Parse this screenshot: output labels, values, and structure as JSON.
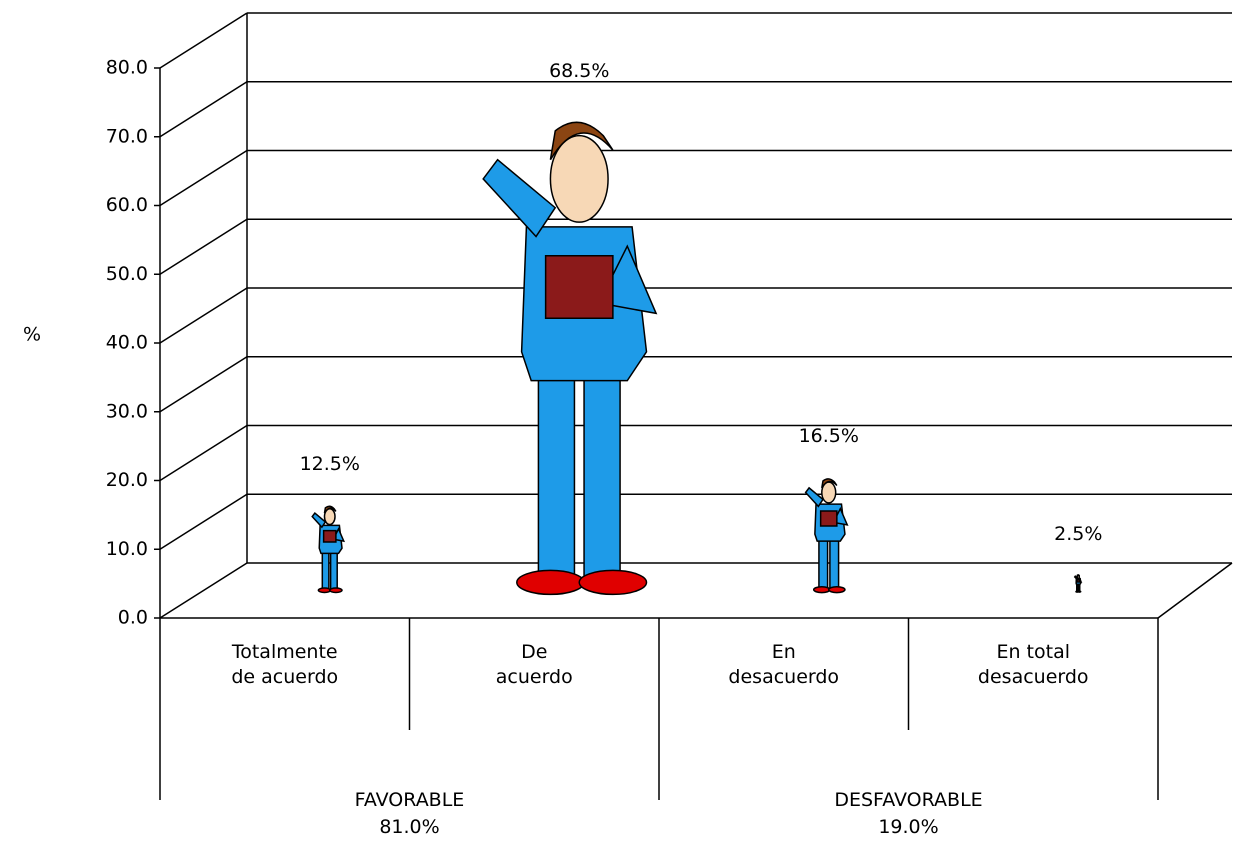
{
  "chart_data": {
    "type": "pictograph",
    "ylabel": "%",
    "categories": [
      "Totalmente\nde acuerdo",
      "De\nacuerdo",
      "En\ndesacuerdo",
      "En total\ndesacuerdo"
    ],
    "values": [
      12.5,
      68.5,
      16.5,
      2.5
    ],
    "value_labels": [
      "12.5%",
      "68.5%",
      "16.5%",
      "2.5%"
    ],
    "groups": [
      {
        "name": "FAVORABLE",
        "share": "81.0%"
      },
      {
        "name": "DESFAVORABLE",
        "share": "19.0%"
      }
    ],
    "ylim": [
      0,
      80
    ],
    "yticks": [
      {
        "value": 0,
        "label": "0.0"
      },
      {
        "value": 10,
        "label": "10.0"
      },
      {
        "value": 20,
        "label": "20.0"
      },
      {
        "value": 30,
        "label": "30.0"
      },
      {
        "value": 40,
        "label": "40.0"
      },
      {
        "value": 50,
        "label": "50.0"
      },
      {
        "value": 60,
        "label": "60.0"
      },
      {
        "value": 70,
        "label": "70.0"
      },
      {
        "value": 80,
        "label": "80.0"
      }
    ],
    "grid": true,
    "color": "#1e9be8"
  }
}
